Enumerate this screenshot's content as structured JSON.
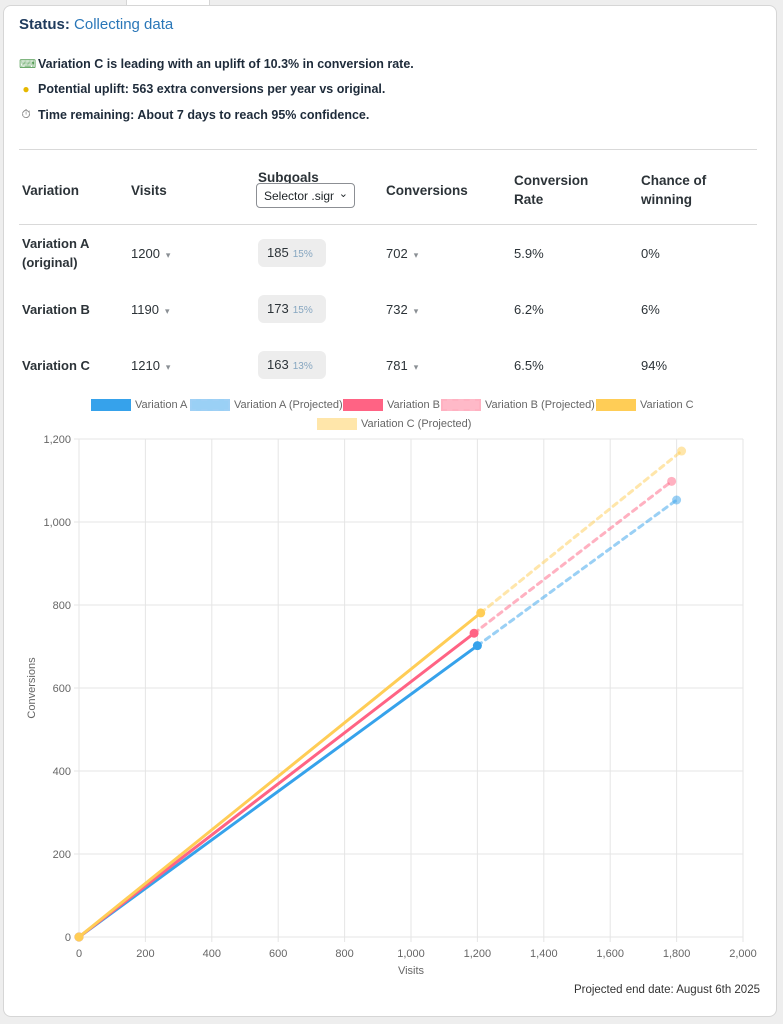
{
  "status": {
    "label": "Status:",
    "value": "Collecting data"
  },
  "messages": [
    {
      "icon": "ruler-icon",
      "text": "Variation C is leading with an uplift of 10.3% in conversion rate."
    },
    {
      "icon": "lightbulb-icon",
      "text": "Potential uplift: 563 extra conversions per year vs original."
    },
    {
      "icon": "stopwatch-icon",
      "text": "Time remaining: About 7 days to reach 95% confidence."
    }
  ],
  "table": {
    "headers": {
      "variation": "Variation",
      "visits": "Visits",
      "subgoals": "Subgoals",
      "conversions": "Conversions",
      "rate": "Conversion Rate",
      "chance": "Chance of winning"
    },
    "subgoal_select": "Selector .signup",
    "rows": [
      {
        "name": "Variation A (original)",
        "visits": "1200",
        "subgoal": "185",
        "subgoal_pct": "15%",
        "conversions": "702",
        "rate": "5.9%",
        "chance": "0%"
      },
      {
        "name": "Variation B",
        "visits": "1190",
        "subgoal": "173",
        "subgoal_pct": "15%",
        "conversions": "732",
        "rate": "6.2%",
        "chance": "6%"
      },
      {
        "name": "Variation C",
        "visits": "1210",
        "subgoal": "163",
        "subgoal_pct": "13%",
        "conversions": "781",
        "rate": "6.5%",
        "chance": "94%"
      }
    ]
  },
  "chart_data": {
    "type": "line",
    "xlabel": "Visits",
    "ylabel": "Conversions",
    "xlim": [
      0,
      2000
    ],
    "ylim": [
      0,
      1200
    ],
    "xticks": [
      0,
      200,
      400,
      600,
      800,
      1000,
      1200,
      1400,
      1600,
      1800,
      2000
    ],
    "yticks": [
      0,
      200,
      400,
      600,
      800,
      1000,
      1200
    ],
    "grid": true,
    "legend_position": "top",
    "series": [
      {
        "name": "Variation A",
        "color": "#36a2eb",
        "dashed": false,
        "points": [
          [
            0,
            0
          ],
          [
            1200,
            702
          ]
        ]
      },
      {
        "name": "Variation A (Projected)",
        "color": "#36a2eb",
        "dashed": true,
        "points": [
          [
            1200,
            702
          ],
          [
            1800,
            1053
          ]
        ]
      },
      {
        "name": "Variation B",
        "color": "#ff6384",
        "dashed": false,
        "points": [
          [
            0,
            0
          ],
          [
            1190,
            732
          ]
        ]
      },
      {
        "name": "Variation B (Projected)",
        "color": "#ff6384",
        "dashed": true,
        "points": [
          [
            1190,
            732
          ],
          [
            1785,
            1098
          ]
        ]
      },
      {
        "name": "Variation C",
        "color": "#ffcd56",
        "dashed": false,
        "points": [
          [
            0,
            0
          ],
          [
            1210,
            781
          ]
        ]
      },
      {
        "name": "Variation C (Projected)",
        "color": "#ffcd56",
        "dashed": true,
        "points": [
          [
            1210,
            781
          ],
          [
            1815,
            1171
          ]
        ]
      }
    ]
  },
  "footer": "Projected end date: August 6th 2025"
}
